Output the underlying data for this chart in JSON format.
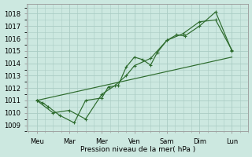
{
  "background_color": "#cce8e0",
  "grid_color": "#aaccc4",
  "line_color": "#2d6b2d",
  "ylabel": "Pression niveau de la mer( hPa )",
  "ylim": [
    1008.5,
    1018.8
  ],
  "yticks": [
    1009,
    1010,
    1011,
    1012,
    1013,
    1014,
    1015,
    1016,
    1017,
    1018
  ],
  "x_labels": [
    "Meu",
    "Mar",
    "Mer",
    "Ven",
    "Sam",
    "Dim",
    "Lun"
  ],
  "x_positions": [
    0,
    1,
    2,
    3,
    4,
    5,
    6
  ],
  "xlim": [
    -0.3,
    6.5
  ],
  "series1_x": [
    0.0,
    0.18,
    0.35,
    0.7,
    1.15,
    1.5,
    2.0,
    2.2,
    2.5,
    2.75,
    3.0,
    3.25,
    3.5,
    3.7,
    4.0,
    4.3,
    4.55,
    5.0,
    5.5,
    6.0
  ],
  "series1_y": [
    1011.0,
    1010.8,
    1010.5,
    1009.8,
    1009.2,
    1011.0,
    1011.2,
    1012.1,
    1012.2,
    1013.7,
    1014.5,
    1014.3,
    1013.85,
    1014.85,
    1015.85,
    1016.3,
    1016.2,
    1017.0,
    1018.15,
    1015.0
  ],
  "series2_x": [
    0.0,
    0.5,
    1.0,
    1.5,
    2.0,
    2.4,
    2.75,
    3.0,
    3.5,
    4.0,
    4.5,
    5.0,
    5.5,
    6.0
  ],
  "series2_y": [
    1011.0,
    1010.0,
    1010.2,
    1009.5,
    1011.5,
    1012.2,
    1013.0,
    1013.8,
    1014.4,
    1015.85,
    1016.4,
    1017.35,
    1017.5,
    1015.05
  ],
  "series3_x": [
    0.0,
    6.0
  ],
  "series3_y": [
    1011.0,
    1014.5
  ]
}
